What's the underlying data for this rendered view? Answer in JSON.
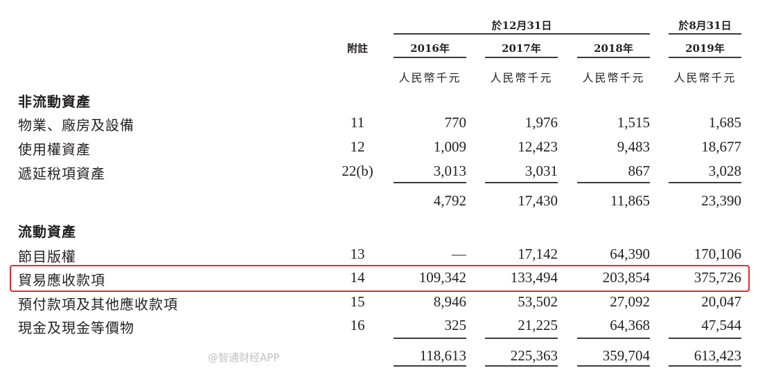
{
  "header": {
    "group1": "於12月31日",
    "group2": "於8月31日",
    "note_label": "附註",
    "years": [
      "2016年",
      "2017年",
      "2018年",
      "2019年"
    ],
    "unit": "人民幣千元"
  },
  "sections": [
    {
      "title": "非流動資產",
      "rows": [
        {
          "label": "物業、廠房及設備",
          "note": "11",
          "values": [
            "770",
            "1,976",
            "1,515",
            "1,685"
          ]
        },
        {
          "label": "使用權資產",
          "note": "12",
          "values": [
            "1,009",
            "12,423",
            "9,483",
            "18,677"
          ]
        },
        {
          "label": "遞延稅項資產",
          "note": "22(b)",
          "values": [
            "3,013",
            "3,031",
            "867",
            "3,028"
          ]
        }
      ],
      "subtotal": [
        "4,792",
        "17,430",
        "11,865",
        "23,390"
      ]
    },
    {
      "title": "流動資產",
      "rows": [
        {
          "label": "節目版權",
          "note": "13",
          "values": [
            "—",
            "17,142",
            "64,390",
            "170,106"
          ]
        },
        {
          "label": "貿易應收款項",
          "note": "14",
          "values": [
            "109,342",
            "133,494",
            "203,854",
            "375,726"
          ]
        },
        {
          "label": "預付款項及其他應收款項",
          "note": "15",
          "values": [
            "8,946",
            "53,502",
            "27,092",
            "20,047"
          ]
        },
        {
          "label": "現金及現金等價物",
          "note": "16",
          "values": [
            "325",
            "21,225",
            "64,368",
            "47,544"
          ]
        }
      ],
      "subtotal": [
        "118,613",
        "225,363",
        "359,704",
        "613,423"
      ]
    }
  ],
  "highlight_color": "#e8262b",
  "watermark": "@智通财经APP"
}
